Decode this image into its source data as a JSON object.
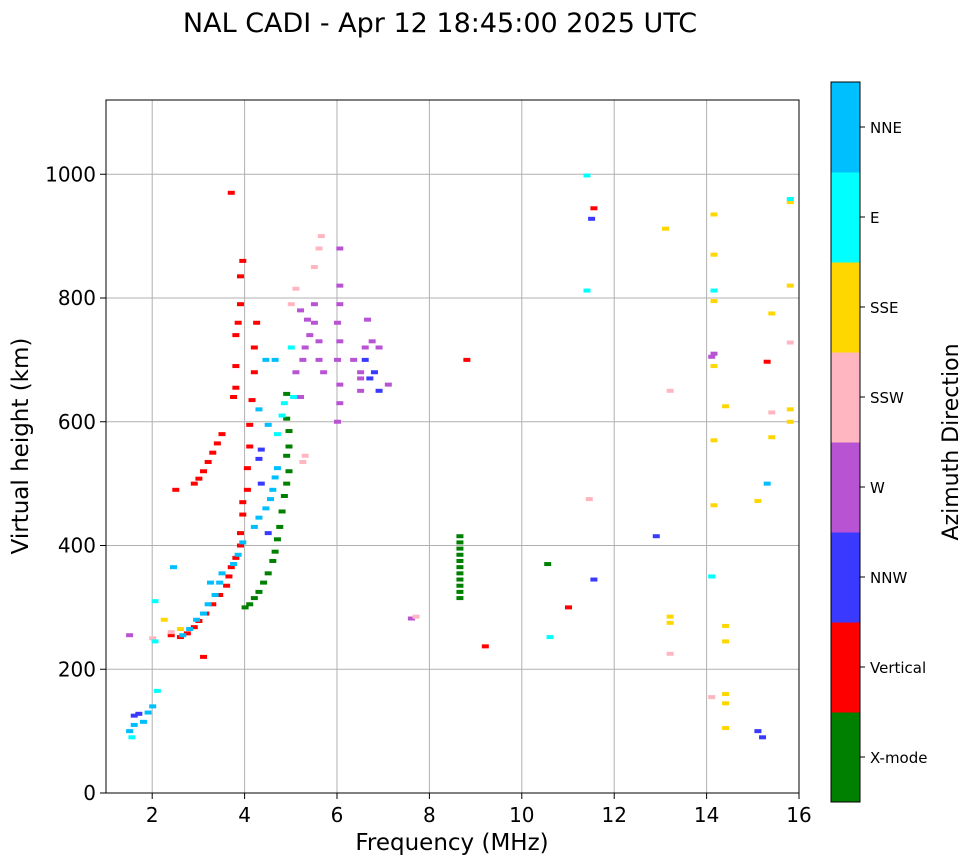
{
  "chart_data": {
    "type": "scatter",
    "title": "NAL CADI - Apr 12 18:45:00 2025 UTC",
    "xlabel": "Frequency (MHz)",
    "ylabel": "Virtual height (km)",
    "xlim": [
      1,
      16
    ],
    "ylim": [
      0,
      1120
    ],
    "x_ticks": [
      2,
      4,
      6,
      8,
      10,
      12,
      14,
      16
    ],
    "y_ticks": [
      0,
      200,
      400,
      600,
      800,
      1000
    ],
    "grid": true,
    "colorbar": {
      "label": "Azimuth Direction",
      "categories": [
        {
          "name": "X-mode",
          "color": "#008000"
        },
        {
          "name": "Vertical",
          "color": "#ff0000"
        },
        {
          "name": "NNW",
          "color": "#3939ff"
        },
        {
          "name": "W",
          "color": "#b854d4"
        },
        {
          "name": "SSW",
          "color": "#ffb6c1"
        },
        {
          "name": "SSE",
          "color": "#ffd700"
        },
        {
          "name": "E",
          "color": "#00ffff"
        },
        {
          "name": "NNE",
          "color": "#00bfff"
        }
      ]
    },
    "series": [
      {
        "name": "X-mode",
        "points": [
          [
            4.0,
            300
          ],
          [
            4.1,
            305
          ],
          [
            4.2,
            315
          ],
          [
            4.3,
            325
          ],
          [
            4.4,
            340
          ],
          [
            4.5,
            355
          ],
          [
            4.6,
            375
          ],
          [
            4.65,
            390
          ],
          [
            4.7,
            410
          ],
          [
            4.75,
            430
          ],
          [
            4.8,
            455
          ],
          [
            4.85,
            480
          ],
          [
            4.9,
            500
          ],
          [
            4.95,
            520
          ],
          [
            4.9,
            545
          ],
          [
            4.95,
            560
          ],
          [
            4.95,
            585
          ],
          [
            4.9,
            605
          ],
          [
            4.9,
            645
          ],
          [
            8.65,
            315
          ],
          [
            8.65,
            325
          ],
          [
            8.65,
            335
          ],
          [
            8.65,
            345
          ],
          [
            8.65,
            355
          ],
          [
            8.65,
            365
          ],
          [
            8.65,
            375
          ],
          [
            8.65,
            385
          ],
          [
            8.65,
            395
          ],
          [
            8.65,
            405
          ],
          [
            8.65,
            415
          ],
          [
            10.55,
            370
          ]
        ]
      },
      {
        "name": "Vertical",
        "points": [
          [
            2.4,
            255
          ],
          [
            2.6,
            252
          ],
          [
            2.75,
            258
          ],
          [
            2.9,
            268
          ],
          [
            3.0,
            278
          ],
          [
            3.15,
            290
          ],
          [
            3.3,
            305
          ],
          [
            3.45,
            320
          ],
          [
            3.6,
            335
          ],
          [
            3.65,
            350
          ],
          [
            3.7,
            365
          ],
          [
            3.8,
            380
          ],
          [
            3.9,
            400
          ],
          [
            3.9,
            420
          ],
          [
            3.95,
            450
          ],
          [
            3.95,
            470
          ],
          [
            4.05,
            490
          ],
          [
            4.05,
            525
          ],
          [
            4.1,
            560
          ],
          [
            4.1,
            595
          ],
          [
            4.15,
            635
          ],
          [
            4.2,
            680
          ],
          [
            4.2,
            720
          ],
          [
            4.25,
            760
          ],
          [
            3.75,
            640
          ],
          [
            3.8,
            655
          ],
          [
            3.8,
            690
          ],
          [
            3.8,
            740
          ],
          [
            3.85,
            760
          ],
          [
            3.5,
            580
          ],
          [
            3.4,
            565
          ],
          [
            3.3,
            550
          ],
          [
            3.2,
            535
          ],
          [
            3.1,
            520
          ],
          [
            3.0,
            508
          ],
          [
            2.9,
            500
          ],
          [
            2.5,
            490
          ],
          [
            3.9,
            790
          ],
          [
            3.9,
            835
          ],
          [
            3.95,
            860
          ],
          [
            3.7,
            970
          ],
          [
            3.1,
            220
          ],
          [
            8.8,
            700
          ],
          [
            9.2,
            237
          ],
          [
            11.0,
            300
          ],
          [
            11.55,
            945
          ],
          [
            15.3,
            697
          ]
        ]
      },
      {
        "name": "NNW",
        "points": [
          [
            1.6,
            125
          ],
          [
            1.7,
            128
          ],
          [
            4.35,
            500
          ],
          [
            4.3,
            540
          ],
          [
            4.35,
            555
          ],
          [
            4.5,
            420
          ],
          [
            6.9,
            650
          ],
          [
            6.8,
            680
          ],
          [
            6.6,
            700
          ],
          [
            6.7,
            670
          ],
          [
            11.5,
            928
          ],
          [
            11.55,
            345
          ],
          [
            12.9,
            415
          ],
          [
            15.2,
            90
          ],
          [
            15.1,
            100
          ]
        ]
      },
      {
        "name": "W",
        "points": [
          [
            1.5,
            255
          ],
          [
            5.2,
            640
          ],
          [
            5.1,
            680
          ],
          [
            5.25,
            700
          ],
          [
            5.3,
            720
          ],
          [
            5.4,
            740
          ],
          [
            5.5,
            760
          ],
          [
            5.6,
            700
          ],
          [
            5.7,
            680
          ],
          [
            5.6,
            730
          ],
          [
            5.2,
            780
          ],
          [
            5.35,
            765
          ],
          [
            5.5,
            790
          ],
          [
            6.0,
            600
          ],
          [
            6.05,
            630
          ],
          [
            6.05,
            660
          ],
          [
            6.0,
            700
          ],
          [
            6.05,
            730
          ],
          [
            6.0,
            760
          ],
          [
            6.05,
            790
          ],
          [
            6.05,
            820
          ],
          [
            6.05,
            880
          ],
          [
            6.35,
            700
          ],
          [
            6.5,
            680
          ],
          [
            6.6,
            720
          ],
          [
            6.75,
            730
          ],
          [
            6.9,
            720
          ],
          [
            6.65,
            765
          ],
          [
            6.5,
            650
          ],
          [
            6.5,
            670
          ],
          [
            7.1,
            660
          ],
          [
            7.6,
            282
          ],
          [
            14.15,
            710
          ],
          [
            14.1,
            705
          ]
        ]
      },
      {
        "name": "SSW",
        "points": [
          [
            2.0,
            250
          ],
          [
            2.4,
            260
          ],
          [
            5.0,
            790
          ],
          [
            5.1,
            815
          ],
          [
            5.5,
            850
          ],
          [
            5.6,
            880
          ],
          [
            5.65,
            900
          ],
          [
            5.3,
            545
          ],
          [
            5.25,
            535
          ],
          [
            7.7,
            285
          ],
          [
            11.45,
            475
          ],
          [
            13.2,
            225
          ],
          [
            13.2,
            650
          ],
          [
            14.1,
            155
          ],
          [
            15.4,
            615
          ],
          [
            15.8,
            728
          ]
        ]
      },
      {
        "name": "SSE",
        "points": [
          [
            2.25,
            280
          ],
          [
            2.6,
            265
          ],
          [
            13.1,
            912
          ],
          [
            13.2,
            285
          ],
          [
            13.2,
            275
          ],
          [
            14.15,
            935
          ],
          [
            14.15,
            870
          ],
          [
            14.15,
            795
          ],
          [
            14.15,
            690
          ],
          [
            14.15,
            570
          ],
          [
            14.15,
            465
          ],
          [
            14.4,
            625
          ],
          [
            14.4,
            270
          ],
          [
            14.4,
            245
          ],
          [
            14.4,
            160
          ],
          [
            14.4,
            145
          ],
          [
            14.4,
            105
          ],
          [
            15.4,
            775
          ],
          [
            15.4,
            575
          ],
          [
            15.1,
            472
          ],
          [
            15.8,
            820
          ],
          [
            15.8,
            620
          ],
          [
            15.8,
            600
          ],
          [
            15.8,
            955
          ]
        ]
      },
      {
        "name": "E",
        "points": [
          [
            1.55,
            90
          ],
          [
            2.05,
            245
          ],
          [
            2.1,
            165
          ],
          [
            4.7,
            580
          ],
          [
            4.85,
            630
          ],
          [
            5.05,
            640
          ],
          [
            5.0,
            720
          ],
          [
            4.8,
            610
          ],
          [
            11.4,
            812
          ],
          [
            11.4,
            998
          ],
          [
            14.15,
            812
          ],
          [
            14.1,
            350
          ],
          [
            10.6,
            252
          ],
          [
            15.8,
            960
          ],
          [
            2.05,
            310
          ]
        ]
      },
      {
        "name": "NNE",
        "points": [
          [
            1.5,
            100
          ],
          [
            1.6,
            110
          ],
          [
            1.8,
            115
          ],
          [
            1.9,
            130
          ],
          [
            2.0,
            140
          ],
          [
            2.65,
            255
          ],
          [
            2.8,
            265
          ],
          [
            2.95,
            280
          ],
          [
            3.1,
            290
          ],
          [
            3.2,
            305
          ],
          [
            3.35,
            320
          ],
          [
            3.45,
            340
          ],
          [
            3.5,
            355
          ],
          [
            3.75,
            370
          ],
          [
            3.85,
            385
          ],
          [
            3.95,
            405
          ],
          [
            4.2,
            430
          ],
          [
            4.3,
            445
          ],
          [
            4.45,
            460
          ],
          [
            4.55,
            475
          ],
          [
            4.6,
            490
          ],
          [
            4.65,
            510
          ],
          [
            4.7,
            525
          ],
          [
            4.5,
            595
          ],
          [
            4.3,
            620
          ],
          [
            4.45,
            700
          ],
          [
            4.65,
            700
          ],
          [
            2.45,
            365
          ],
          [
            3.25,
            340
          ],
          [
            15.3,
            500
          ]
        ]
      }
    ]
  }
}
